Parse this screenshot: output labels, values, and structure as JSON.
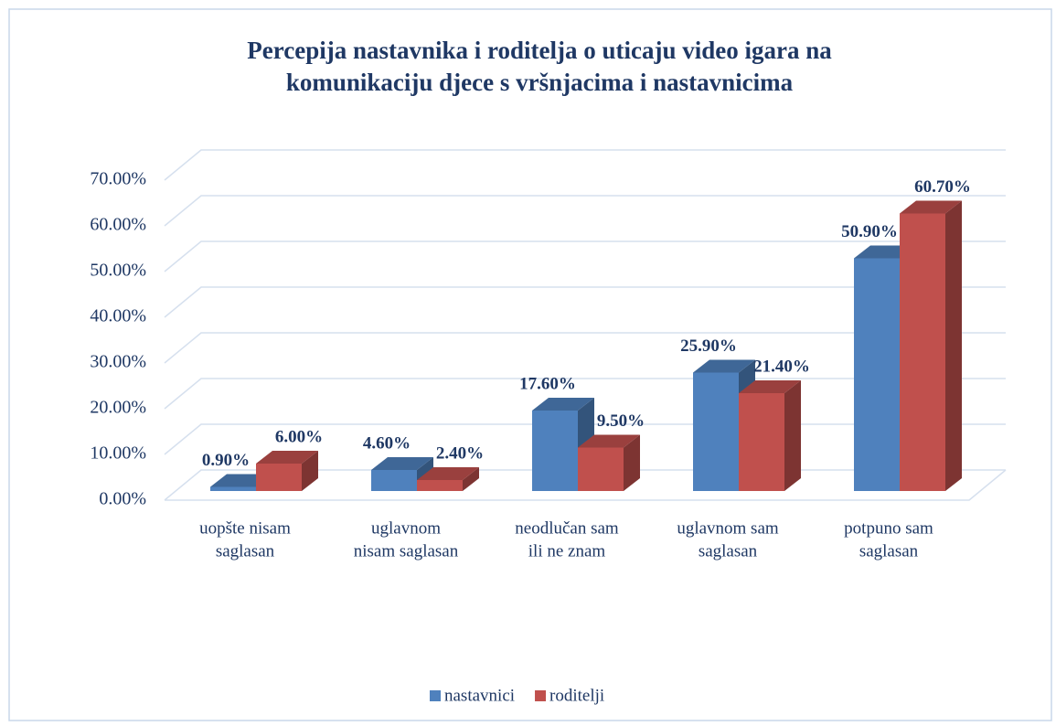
{
  "chart_data": {
    "type": "bar3d",
    "title": [
      "Percepija nastavnika i roditelja o uticaju video igara na",
      "komunikaciju djece s vršnjacima i nastavnicima"
    ],
    "categories": [
      [
        "uopšte nisam",
        "saglasan"
      ],
      [
        "uglavnom",
        "nisam saglasan"
      ],
      [
        "neodlučan sam",
        "ili ne znam"
      ],
      [
        "uglavnom sam",
        "saglasan"
      ],
      [
        "potpuno sam",
        "saglasan"
      ]
    ],
    "series": [
      {
        "name": "nastavnici",
        "color": "#4f81bd",
        "values": [
          0.9,
          4.6,
          17.6,
          25.9,
          50.9
        ],
        "value_labels": [
          "0.90%",
          "4.60%",
          "17.60%",
          "25.90%",
          "50.90%"
        ]
      },
      {
        "name": "roditelji",
        "color": "#c0504d",
        "values": [
          6.0,
          2.4,
          9.5,
          21.4,
          60.7
        ],
        "value_labels": [
          "6.00%",
          "2.40%",
          "9.50%",
          "21.40%",
          "60.70%"
        ]
      }
    ],
    "ylim": [
      0,
      70
    ],
    "yticks": [
      {
        "value": 0,
        "label": "0.00%"
      },
      {
        "value": 10,
        "label": "10.00%"
      },
      {
        "value": 20,
        "label": "20.00%"
      },
      {
        "value": 30,
        "label": "30.00%"
      },
      {
        "value": 40,
        "label": "40.00%"
      },
      {
        "value": 50,
        "label": "50.00%"
      },
      {
        "value": 60,
        "label": "60.00%"
      },
      {
        "value": 70,
        "label": "70.00%"
      }
    ],
    "grid": true,
    "legend": "bottom"
  }
}
